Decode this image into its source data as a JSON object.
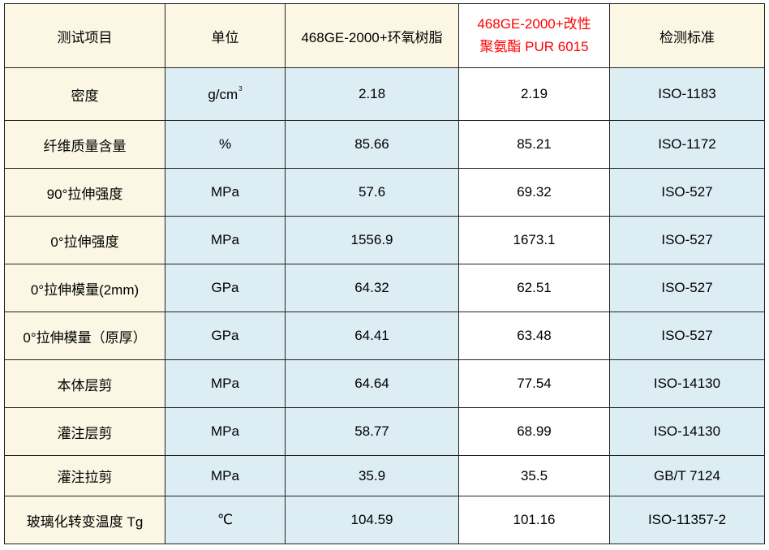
{
  "header": {
    "item": "测试项目",
    "unit": "单位",
    "epoxy": "468GE-2000+环氧树脂",
    "pur_line1": "468GE-2000+改性",
    "pur_line2": "聚氨酯 PUR 6015",
    "standard": "检测标准"
  },
  "rows": [
    {
      "item": "密度",
      "unit": "g/cm",
      "unit_sup": "3",
      "epoxy": "2.18",
      "pur": "2.19",
      "std": "ISO-1183"
    },
    {
      "item": "纤维质量含量",
      "unit": "%",
      "epoxy": "85.66",
      "pur": "85.21",
      "std": "ISO-1172"
    },
    {
      "item": "90°拉伸强度",
      "unit": "MPa",
      "epoxy": "57.6",
      "pur": "69.32",
      "std": "ISO-527"
    },
    {
      "item": "0°拉伸强度",
      "unit": "MPa",
      "epoxy": "1556.9",
      "pur": "1673.1",
      "std": "ISO-527"
    },
    {
      "item": "0°拉伸模量(2mm)",
      "unit": "GPa",
      "epoxy": "64.32",
      "pur": "62.51",
      "std": "ISO-527"
    },
    {
      "item": "0°拉伸模量（原厚）",
      "unit": "GPa",
      "epoxy": "64.41",
      "pur": "63.48",
      "std": "ISO-527"
    },
    {
      "item": "本体层剪",
      "unit": "MPa",
      "epoxy": "64.64",
      "pur": "77.54",
      "std": "ISO-14130"
    },
    {
      "item": "灌注层剪",
      "unit": "MPa",
      "epoxy": "58.77",
      "pur": "68.99",
      "std": "ISO-14130"
    },
    {
      "item": "灌注拉剪",
      "unit": "MPa",
      "epoxy": "35.9",
      "pur": "35.5",
      "std": "GB/T 7124"
    },
    {
      "item": "玻璃化转变温度 Tg",
      "unit": "℃",
      "epoxy": "104.59",
      "pur": "101.16",
      "std": "ISO-11357-2"
    }
  ],
  "colors": {
    "header_bg": "#fbf7e4",
    "blue_bg": "#dcedf4",
    "highlight_text": "#ff0000"
  }
}
